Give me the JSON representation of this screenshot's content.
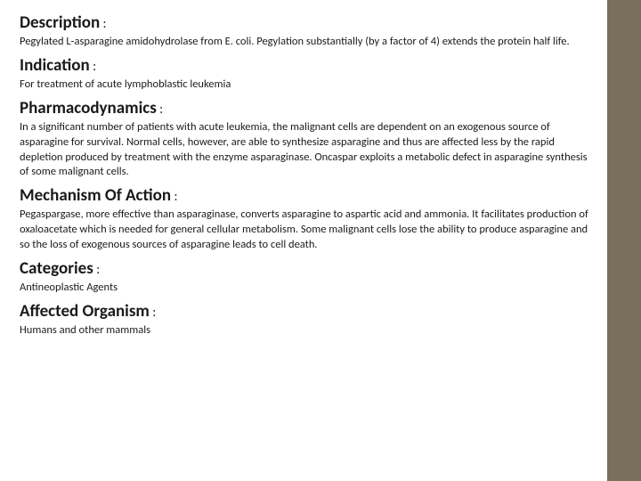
{
  "colors": {
    "background": "#ffffff",
    "stripe": "#7a6f5a",
    "text": "#1a1a1a"
  },
  "typography": {
    "heading_large_fontsize": 19,
    "heading_med_fontsize": 17,
    "body_fontsize": 12.5,
    "heading_weight": 700
  },
  "sections": [
    {
      "heading": "Description",
      "heading_size": "large",
      "body": "Pegylated L-asparagine amidohydrolase from E. coli. Pegylation substantially (by a factor of 4) extends the protein half life."
    },
    {
      "heading": "Indication",
      "heading_size": "large",
      "body": "For treatment of acute lymphoblastic leukemia"
    },
    {
      "heading": "Pharmacodynamics",
      "heading_size": "large",
      "body": "In a significant number of patients with acute leukemia, the malignant cells are dependent on an exogenous source of asparagine for survival. Normal cells, however, are able to synthesize asparagine and thus are affected less by the rapid depletion produced by treatment with the enzyme asparaginase. Oncaspar exploits a metabolic defect in asparagine synthesis of some malignant cells."
    },
    {
      "heading": "Mechanism Of Action",
      "heading_size": "large",
      "body": "Pegaspargase, more effective than asparaginase, converts asparagine to aspartic acid and ammonia. It facilitates production of oxaloacetate which is needed for general cellular metabolism. Some malignant cells lose the ability to produce asparagine and so the loss of exogenous sources of asparagine leads to cell death."
    },
    {
      "heading": "Categories",
      "heading_size": "large",
      "body": "Antineoplastic Agents"
    },
    {
      "heading": "Affected Organism",
      "heading_size": "large",
      "body": "Humans and other mammals"
    }
  ],
  "colon": " :"
}
